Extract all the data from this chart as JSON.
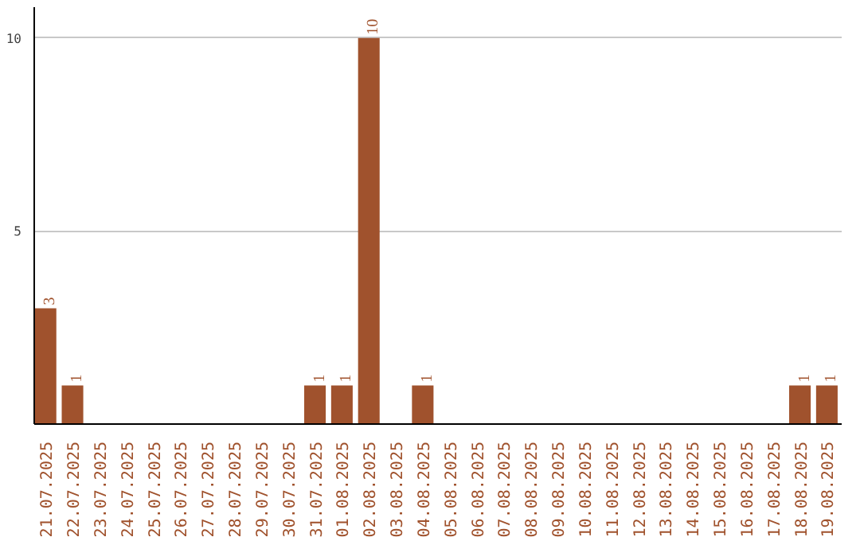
{
  "chart_data": {
    "type": "bar",
    "categories": [
      "21.07.2025",
      "22.07.2025",
      "23.07.2025",
      "24.07.2025",
      "25.07.2025",
      "26.07.2025",
      "27.07.2025",
      "28.07.2025",
      "29.07.2025",
      "30.07.2025",
      "31.07.2025",
      "01.08.2025",
      "02.08.2025",
      "03.08.2025",
      "04.08.2025",
      "05.08.2025",
      "06.08.2025",
      "07.08.2025",
      "08.08.2025",
      "09.08.2025",
      "10.08.2025",
      "11.08.2025",
      "12.08.2025",
      "13.08.2025",
      "14.08.2025",
      "15.08.2025",
      "16.08.2025",
      "17.08.2025",
      "18.08.2025",
      "19.08.2025"
    ],
    "values": [
      3,
      1,
      0,
      0,
      0,
      0,
      0,
      0,
      0,
      0,
      1,
      1,
      10,
      0,
      1,
      0,
      0,
      0,
      0,
      0,
      0,
      0,
      0,
      0,
      0,
      0,
      0,
      0,
      1,
      1
    ],
    "value_labels": [
      "3",
      "1",
      null,
      null,
      null,
      null,
      null,
      null,
      null,
      null,
      "1",
      "1",
      "10",
      null,
      "1",
      null,
      null,
      null,
      null,
      null,
      null,
      null,
      null,
      null,
      null,
      null,
      null,
      null,
      "1",
      "1"
    ],
    "color": "#a0522d",
    "ylim": [
      0,
      10.8
    ],
    "yticks": [
      5,
      10
    ],
    "grid": "y"
  }
}
